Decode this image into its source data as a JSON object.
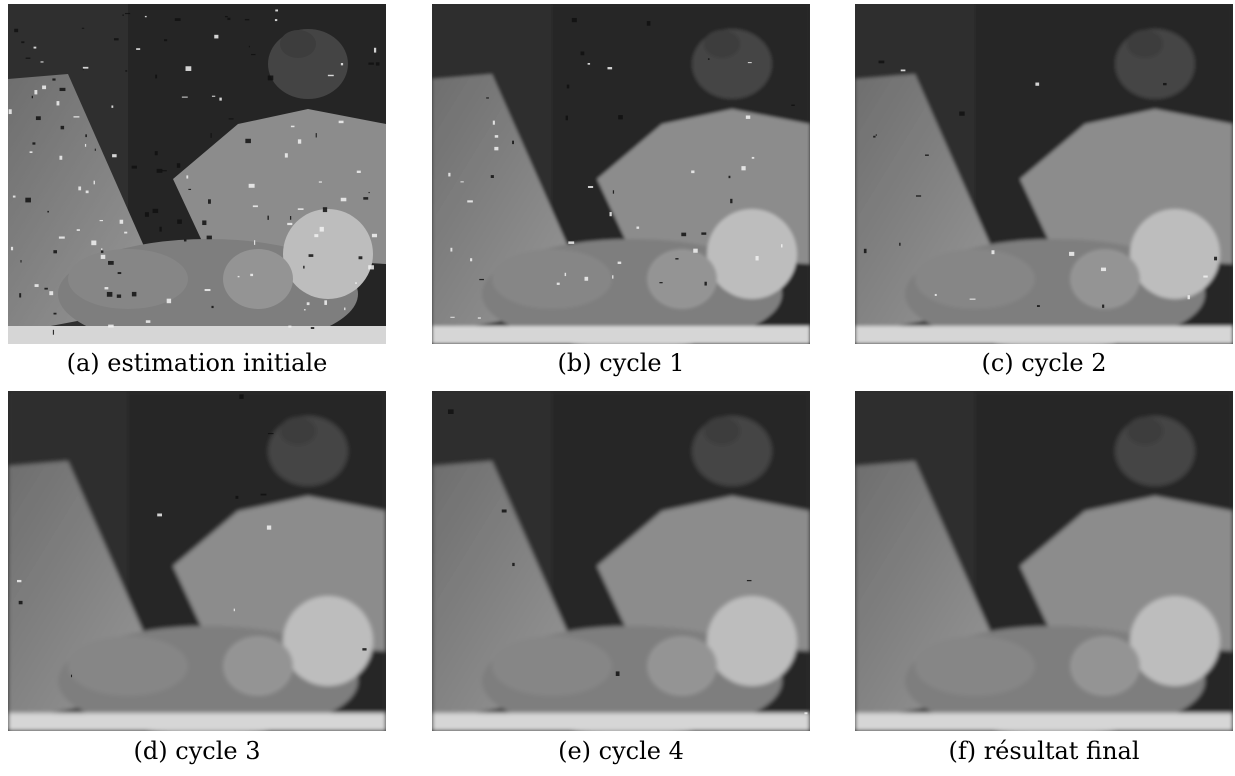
{
  "figure": {
    "panels": [
      {
        "caption": "(a) estimation initiale",
        "noise": 1.0
      },
      {
        "caption": "(b) cycle 1",
        "noise": 0.35
      },
      {
        "caption": "(c) cycle 2",
        "noise": 0.15
      },
      {
        "caption": "(d) cycle 3",
        "noise": 0.08
      },
      {
        "caption": "(e) cycle 4",
        "noise": 0.04
      },
      {
        "caption": "(f) résultat final",
        "noise": 0.0
      }
    ]
  }
}
